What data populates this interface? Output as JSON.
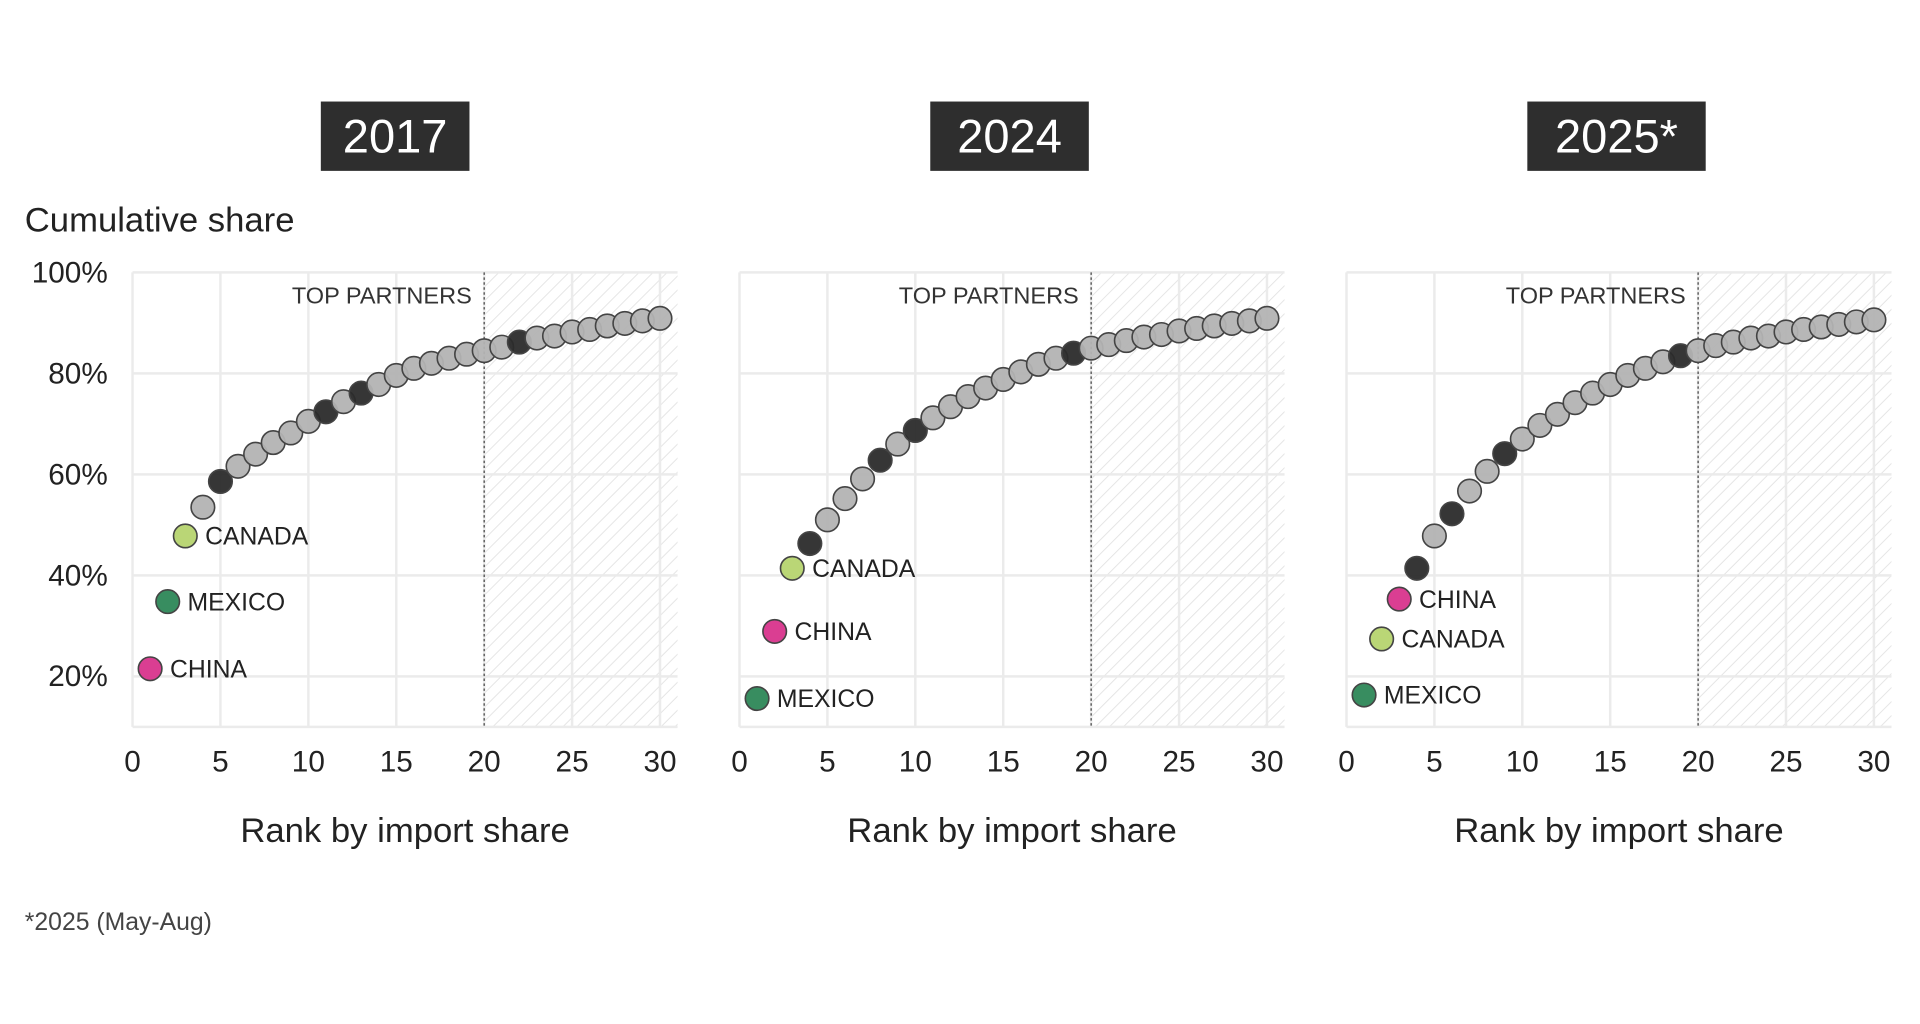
{
  "ylabel": "Cumulative share",
  "footnote": "*2025 (May-Aug)",
  "colors": {
    "other": "#b3b3b3",
    "highlight": "#2b2b2b",
    "CANADA": "#b6d46f",
    "MEXICO": "#2d8757",
    "CHINA": "#d8348c",
    "title_bg": "#2e2e2e"
  },
  "chart_data": [
    {
      "type": "scatter",
      "title": "2017",
      "xlabel": "Rank by import share",
      "ylabel": "Cumulative share",
      "xlim": [
        0,
        31
      ],
      "ylim": [
        10,
        100
      ],
      "xticks": [
        0,
        5,
        10,
        15,
        20,
        25,
        30
      ],
      "yticks": [
        "20%",
        "40%",
        "60%",
        "80%",
        "100%"
      ],
      "grid": true,
      "annotation": "TOP PARTNERS",
      "threshold_rank": 20,
      "x": [
        1,
        2,
        3,
        4,
        5,
        6,
        7,
        8,
        9,
        10,
        11,
        12,
        13,
        14,
        15,
        16,
        17,
        18,
        19,
        20,
        21,
        22,
        23,
        24,
        25,
        26,
        27,
        28,
        29,
        30
      ],
      "y": [
        21.5,
        34.8,
        47.8,
        53.5,
        58.6,
        61.6,
        64,
        66.3,
        68.2,
        70.5,
        72.4,
        74.4,
        76.1,
        77.8,
        79.6,
        81,
        82,
        83,
        83.8,
        84.5,
        85.2,
        86.2,
        87,
        87.4,
        88.2,
        88.7,
        89.4,
        89.9,
        90.4,
        90.9
      ],
      "labeled": {
        "1": "CHINA",
        "2": "MEXICO",
        "3": "CANADA"
      },
      "highlighted_ranks": [
        5,
        11,
        13,
        22
      ]
    },
    {
      "type": "scatter",
      "title": "2024",
      "xlabel": "Rank by import share",
      "ylabel": "Cumulative share",
      "xlim": [
        0,
        31
      ],
      "ylim": [
        10,
        100
      ],
      "xticks": [
        0,
        5,
        10,
        15,
        20,
        25,
        30
      ],
      "yticks": [
        "20%",
        "40%",
        "60%",
        "80%",
        "100%"
      ],
      "grid": true,
      "annotation": "TOP PARTNERS",
      "threshold_rank": 20,
      "x": [
        1,
        2,
        3,
        4,
        5,
        6,
        7,
        8,
        9,
        10,
        11,
        12,
        13,
        14,
        15,
        16,
        17,
        18,
        19,
        20,
        21,
        22,
        23,
        24,
        25,
        26,
        27,
        28,
        29,
        30
      ],
      "y": [
        15.6,
        28.9,
        41.4,
        46.3,
        51,
        55.2,
        59.1,
        62.8,
        66,
        68.7,
        71.2,
        73.4,
        75.4,
        77.1,
        78.8,
        80.3,
        81.8,
        83,
        84,
        85,
        85.7,
        86.5,
        87.2,
        87.7,
        88.4,
        88.9,
        89.4,
        89.9,
        90.4,
        90.9
      ],
      "labeled": {
        "1": "MEXICO",
        "2": "CHINA",
        "3": "CANADA"
      },
      "highlighted_ranks": [
        4,
        8,
        10,
        19
      ]
    },
    {
      "type": "scatter",
      "title": "2025*",
      "xlabel": "Rank by import share",
      "ylabel": "Cumulative share",
      "xlim": [
        0,
        31
      ],
      "ylim": [
        10,
        100
      ],
      "xticks": [
        0,
        5,
        10,
        15,
        20,
        25,
        30
      ],
      "yticks": [
        "20%",
        "40%",
        "60%",
        "80%",
        "100%"
      ],
      "grid": true,
      "annotation": "TOP PARTNERS",
      "threshold_rank": 20,
      "x": [
        1,
        2,
        3,
        4,
        5,
        6,
        7,
        8,
        9,
        10,
        11,
        12,
        13,
        14,
        15,
        16,
        17,
        18,
        19,
        20,
        21,
        22,
        23,
        24,
        25,
        26,
        27,
        28,
        29,
        30
      ],
      "y": [
        16.3,
        27.4,
        35.3,
        41.4,
        47.8,
        52.2,
        56.7,
        60.6,
        64.1,
        67,
        69.7,
        71.9,
        74.2,
        76.1,
        77.8,
        79.6,
        81,
        82.3,
        83.5,
        84.5,
        85.5,
        86.2,
        87,
        87.4,
        88.2,
        88.7,
        89.2,
        89.7,
        90.2,
        90.6
      ],
      "labeled": {
        "1": "MEXICO",
        "2": "CANADA",
        "3": "CHINA"
      },
      "highlighted_ranks": [
        4,
        6,
        9,
        19
      ]
    }
  ]
}
